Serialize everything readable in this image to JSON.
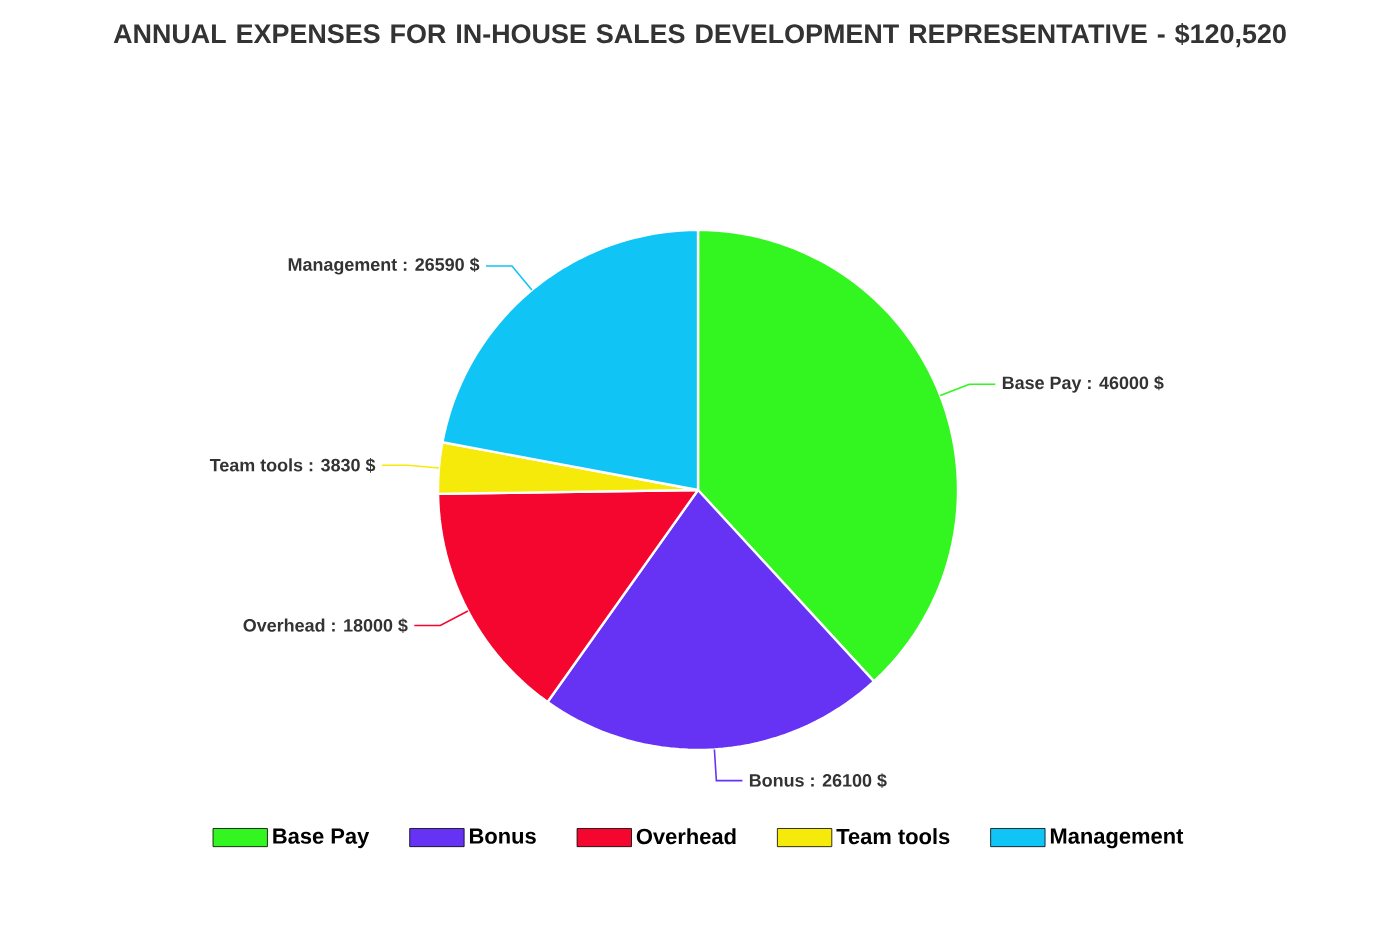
{
  "chart_data": {
    "type": "pie",
    "title": "ANNUAL EXPENSES FOR IN-HOUSE SALES DEVELOPMENT REPRESENTATIVE - $120,520",
    "categories": [
      "Base Pay",
      "Bonus",
      "Overhead",
      "Team tools",
      "Management"
    ],
    "values": [
      46000,
      26100,
      18000,
      3830,
      26590
    ],
    "value_labels": [
      "Base Pay : 46000 $",
      "Bonus : 26100 $",
      "Overhead : 18000 $",
      "Team tools : 3830 $",
      "Management : 26590 $"
    ],
    "colors": [
      "#33f51f",
      "#6633f5",
      "#f5062f",
      "#f5ea0a",
      "#10c5f5"
    ],
    "legend": "bottom"
  }
}
